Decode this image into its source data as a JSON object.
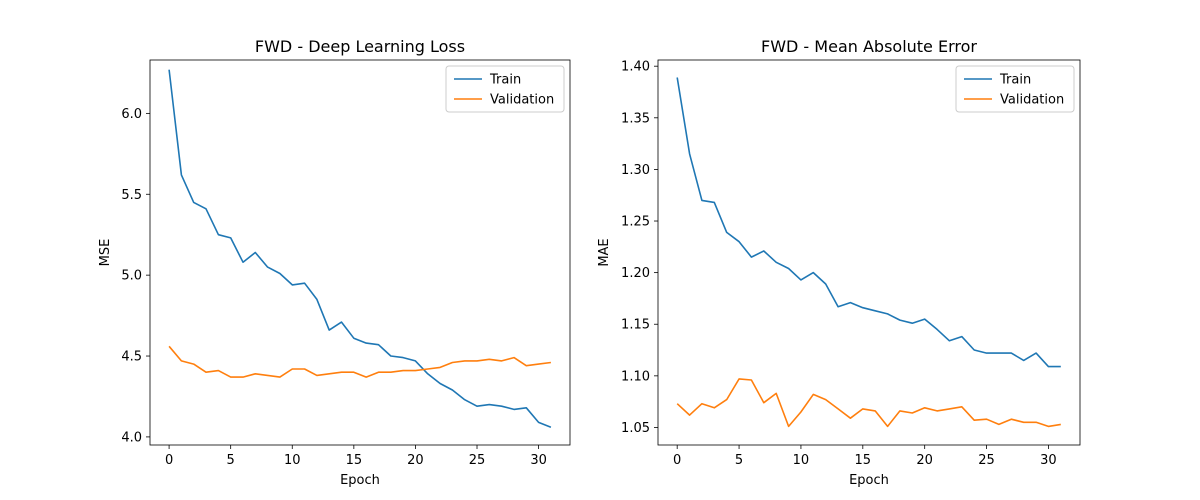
{
  "chart_data": [
    {
      "type": "line",
      "title": "FWD - Deep Learning Loss",
      "xlabel": "Epoch",
      "ylabel": "MSE",
      "xlim": [
        -1.55,
        32.55
      ],
      "ylim": [
        3.95,
        6.33
      ],
      "xticks": [
        0,
        5,
        10,
        15,
        20,
        25,
        30
      ],
      "xtick_labels": [
        "0",
        "5",
        "10",
        "15",
        "20",
        "25",
        "30"
      ],
      "yticks": [
        4.0,
        4.5,
        5.0,
        5.5,
        6.0
      ],
      "ytick_labels": [
        "4.0",
        "4.5",
        "5.0",
        "5.5",
        "6.0"
      ],
      "grid": false,
      "legend": "top-right",
      "x": [
        0,
        1,
        2,
        3,
        4,
        5,
        6,
        7,
        8,
        9,
        10,
        11,
        12,
        13,
        14,
        15,
        16,
        17,
        18,
        19,
        20,
        21,
        22,
        23,
        24,
        25,
        26,
        27,
        28,
        29,
        30,
        31
      ],
      "series": [
        {
          "name": "Train",
          "color": "#1f77b4",
          "values": [
            6.27,
            5.62,
            5.45,
            5.41,
            5.25,
            5.23,
            5.08,
            5.14,
            5.05,
            5.01,
            4.94,
            4.95,
            4.85,
            4.66,
            4.71,
            4.61,
            4.58,
            4.57,
            4.5,
            4.49,
            4.47,
            4.39,
            4.33,
            4.29,
            4.23,
            4.19,
            4.2,
            4.19,
            4.17,
            4.18,
            4.09,
            4.06
          ]
        },
        {
          "name": "Validation",
          "color": "#ff7f0e",
          "values": [
            4.56,
            4.47,
            4.45,
            4.4,
            4.41,
            4.37,
            4.37,
            4.39,
            4.38,
            4.37,
            4.42,
            4.42,
            4.38,
            4.39,
            4.4,
            4.4,
            4.37,
            4.4,
            4.4,
            4.41,
            4.41,
            4.42,
            4.43,
            4.46,
            4.47,
            4.47,
            4.48,
            4.47,
            4.49,
            4.44,
            4.45,
            4.46
          ]
        }
      ]
    },
    {
      "type": "line",
      "title": "FWD - Mean Absolute Error",
      "xlabel": "Epoch",
      "ylabel": "MAE",
      "xlim": [
        -1.55,
        32.55
      ],
      "ylim": [
        1.033,
        1.406
      ],
      "xticks": [
        0,
        5,
        10,
        15,
        20,
        25,
        30
      ],
      "xtick_labels": [
        "0",
        "5",
        "10",
        "15",
        "20",
        "25",
        "30"
      ],
      "yticks": [
        1.05,
        1.1,
        1.15,
        1.2,
        1.25,
        1.3,
        1.35,
        1.4
      ],
      "ytick_labels": [
        "1.05",
        "1.10",
        "1.15",
        "1.20",
        "1.25",
        "1.30",
        "1.35",
        "1.40"
      ],
      "grid": false,
      "legend": "top-right",
      "x": [
        0,
        1,
        2,
        3,
        4,
        5,
        6,
        7,
        8,
        9,
        10,
        11,
        12,
        13,
        14,
        15,
        16,
        17,
        18,
        19,
        20,
        21,
        22,
        23,
        24,
        25,
        26,
        27,
        28,
        29,
        30,
        31
      ],
      "series": [
        {
          "name": "Train",
          "color": "#1f77b4",
          "values": [
            1.389,
            1.315,
            1.27,
            1.268,
            1.239,
            1.23,
            1.215,
            1.221,
            1.21,
            1.204,
            1.193,
            1.2,
            1.189,
            1.167,
            1.171,
            1.166,
            1.163,
            1.16,
            1.154,
            1.151,
            1.155,
            1.145,
            1.134,
            1.138,
            1.125,
            1.122,
            1.122,
            1.122,
            1.115,
            1.122,
            1.109,
            1.109
          ]
        },
        {
          "name": "Validation",
          "color": "#ff7f0e",
          "values": [
            1.073,
            1.062,
            1.073,
            1.069,
            1.077,
            1.097,
            1.096,
            1.074,
            1.083,
            1.051,
            1.065,
            1.082,
            1.077,
            1.068,
            1.059,
            1.068,
            1.066,
            1.051,
            1.066,
            1.064,
            1.069,
            1.066,
            1.068,
            1.07,
            1.057,
            1.058,
            1.053,
            1.058,
            1.055,
            1.055,
            1.051,
            1.053
          ]
        }
      ]
    }
  ]
}
